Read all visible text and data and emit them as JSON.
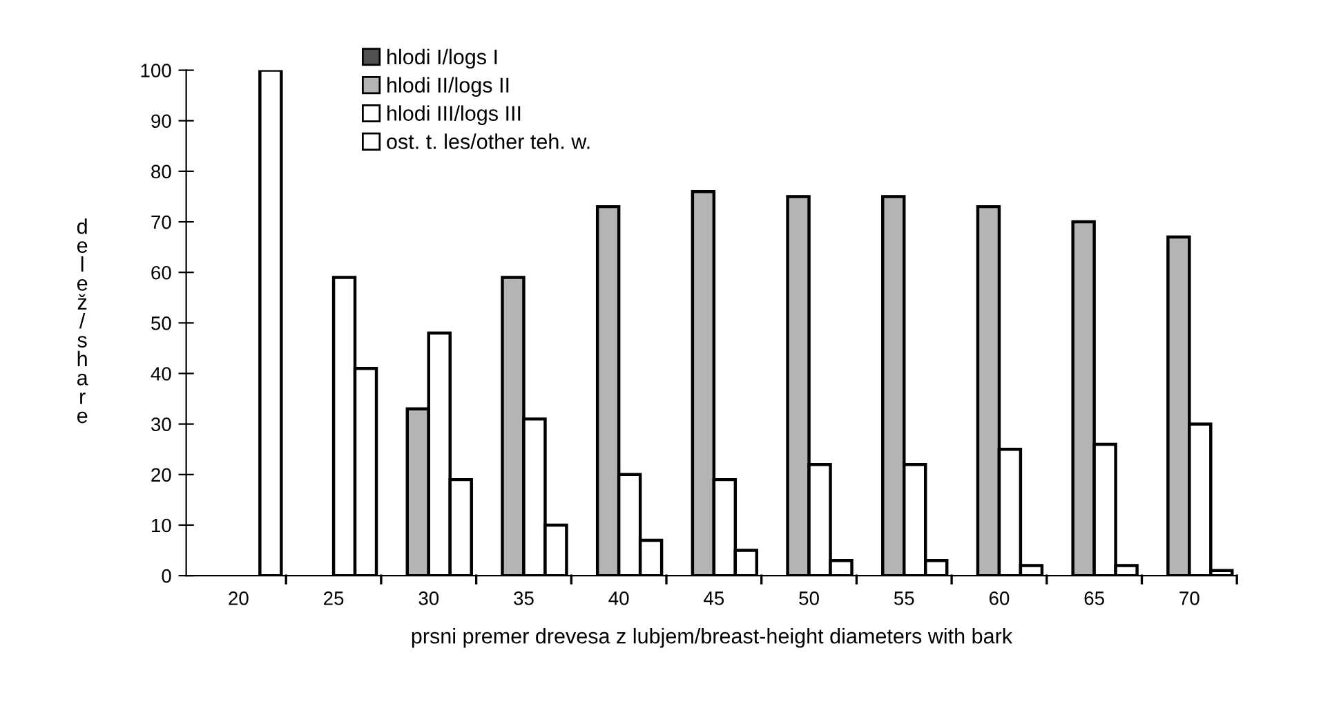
{
  "chart_data": {
    "type": "bar",
    "xlabel": "prsni premer drevesa z lubjem/breast-height diameters with bark",
    "ylabel": "delež/share",
    "categories": [
      "20",
      "25",
      "30",
      "35",
      "40",
      "45",
      "50",
      "55",
      "60",
      "65",
      "70"
    ],
    "series": [
      {
        "name": "hlodi I/logs I",
        "color": "#505050",
        "values": [
          null,
          null,
          null,
          null,
          null,
          null,
          null,
          null,
          null,
          null,
          null
        ]
      },
      {
        "name": "hlodi II/logs II",
        "color": "#b4b4b4",
        "values": [
          null,
          null,
          33,
          59,
          73,
          76,
          75,
          75,
          73,
          70,
          67
        ]
      },
      {
        "name": "hlodi III/logs III",
        "color": "#ffffff",
        "values": [
          null,
          59,
          48,
          31,
          20,
          19,
          22,
          22,
          25,
          26,
          30
        ]
      },
      {
        "name": "ost. t. les/other teh. w.",
        "color": "#ffffff",
        "values": [
          100,
          41,
          19,
          10,
          7,
          5,
          3,
          3,
          2,
          2,
          1
        ]
      }
    ],
    "ylim": [
      0,
      100
    ],
    "yticks": [
      0,
      10,
      20,
      30,
      40,
      50,
      60,
      70,
      80,
      90,
      100
    ],
    "grid": false,
    "legend": "top left"
  }
}
